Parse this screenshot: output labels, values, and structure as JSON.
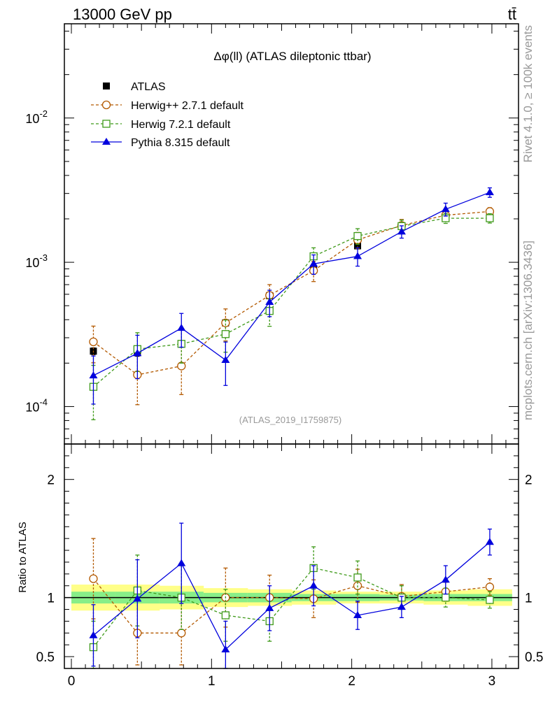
{
  "header": {
    "left": "13000 GeV pp",
    "right": "tt̄"
  },
  "side_labels": {
    "top": "Rivet 4.1.0, ≥ 100k events",
    "bottom": "mcplots.cern.ch [arXiv:1306.3436]"
  },
  "plot_title": "Δφ(ll) (ATLAS dileptonic ttbar)",
  "analysis_label": "(ATLAS_2019_I1759875)",
  "ratio_ylabel": "Ratio to ATLAS",
  "legend": [
    {
      "name": "ATLAS",
      "color": "#000000"
    },
    {
      "name": "Herwig++ 2.7.1 default",
      "color": "#b35900"
    },
    {
      "name": "Herwig 7.2.1 default",
      "color": "#3f9a1a"
    },
    {
      "name": "Pythia 8.315 default",
      "color": "#0000dd"
    }
  ],
  "chart_data": {
    "type": "scatter",
    "title": "Δφ(ll) (ATLAS dileptonic ttbar)",
    "x": [
      0.157,
      0.471,
      0.785,
      1.1,
      1.414,
      1.728,
      2.042,
      2.356,
      2.67,
      2.985
    ],
    "xlim": [
      -0.05,
      3.19
    ],
    "xticks": [
      "0",
      "1",
      "2",
      "3"
    ],
    "main": {
      "yscale": "log",
      "ylim": [
        5.5e-05,
        0.045
      ],
      "yticks": [
        "10^-4",
        "10^-3",
        "10^-2"
      ]
    },
    "ratio": {
      "ylim": [
        0.4,
        2.3
      ],
      "yticks": [
        "0.5",
        "1",
        "2"
      ],
      "band_inner": [
        0.05,
        0.05,
        0.05,
        0.04,
        0.04,
        0.03,
        0.03,
        0.025,
        0.03,
        0.03
      ],
      "band_outer": [
        0.11,
        0.11,
        0.1,
        0.08,
        0.07,
        0.06,
        0.05,
        0.05,
        0.06,
        0.07
      ]
    },
    "series": [
      {
        "name": "ATLAS",
        "marker": "square-filled",
        "color": "#000000",
        "values": [
          0.000242,
          0.000236,
          0.000272,
          0.00038,
          0.000587,
          0.000885,
          0.0013,
          0.00178,
          0.00202,
          0.00206
        ],
        "errors": [
          1.3e-05,
          1.3e-05,
          1.3e-05,
          1.6e-05,
          2.1e-05,
          2.5e-05,
          3e-05,
          4e-05,
          4e-05,
          4e-05
        ],
        "ratio": [
          1,
          1,
          1,
          1,
          1,
          1,
          1,
          1,
          1,
          1
        ],
        "ratio_err": [
          0,
          0,
          0,
          0,
          0,
          0,
          0,
          0,
          0,
          0
        ]
      },
      {
        "name": "Herwig++ 2.7.1 default",
        "marker": "circle-open",
        "color": "#b35900",
        "values": [
          0.000281,
          0.000166,
          0.000191,
          0.00038,
          0.00059,
          0.000875,
          0.00143,
          0.0018,
          0.00212,
          0.00225
        ],
        "errors": [
          8e-05,
          6.3e-05,
          7e-05,
          9.5e-05,
          0.00011,
          0.00014,
          0.00018,
          0.00018,
          0.00015,
          0.00014
        ],
        "ratio": [
          1.16,
          0.7,
          0.7,
          1.0,
          1.0,
          0.99,
          1.1,
          1.01,
          1.05,
          1.09
        ],
        "ratio_err": [
          0.34,
          0.27,
          0.27,
          0.25,
          0.19,
          0.16,
          0.14,
          0.1,
          0.08,
          0.07
        ]
      },
      {
        "name": "Herwig 7.2.1 default",
        "marker": "square-open",
        "color": "#3f9a1a",
        "values": [
          0.000137,
          0.00025,
          0.000272,
          0.000318,
          0.00046,
          0.0011,
          0.00152,
          0.00178,
          0.00202,
          0.00202
        ],
        "errors": [
          5.6e-05,
          7.5e-05,
          7.2e-05,
          8e-05,
          0.0001,
          0.00016,
          0.00019,
          0.00018,
          0.00016,
          0.00015
        ],
        "ratio": [
          0.58,
          1.06,
          1.0,
          0.85,
          0.8,
          1.25,
          1.17,
          1.0,
          1.0,
          0.98
        ],
        "ratio_err": [
          0.22,
          0.3,
          0.27,
          0.22,
          0.17,
          0.18,
          0.14,
          0.1,
          0.08,
          0.07
        ]
      },
      {
        "name": "Pythia 8.315 default",
        "marker": "triangle-filled",
        "color": "#0000dd",
        "values": [
          0.000164,
          0.000234,
          0.00035,
          0.00021,
          0.00053,
          0.000975,
          0.0011,
          0.00163,
          0.00233,
          0.00305
        ],
        "errors": [
          6e-05,
          7.8e-05,
          9.2e-05,
          7e-05,
          0.00011,
          0.00015,
          0.00016,
          0.00016,
          0.00024,
          0.00023
        ],
        "ratio": [
          0.68,
          0.99,
          1.29,
          0.56,
          0.91,
          1.1,
          0.85,
          0.92,
          1.15,
          1.47
        ],
        "ratio_err": [
          0.26,
          0.33,
          0.34,
          0.24,
          0.19,
          0.17,
          0.12,
          0.09,
          0.12,
          0.11
        ]
      }
    ]
  }
}
